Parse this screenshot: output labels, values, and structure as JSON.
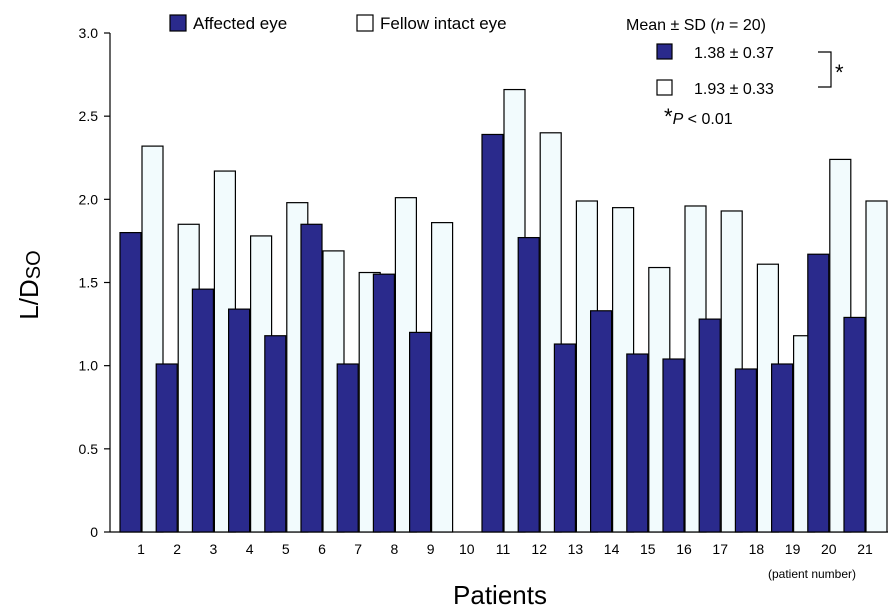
{
  "chart_data": {
    "type": "bar",
    "xlabel": "Patients",
    "xlabel_note": "(patient number)",
    "ylabel_main": "L/D",
    "ylabel_sub": "SO",
    "ylim": [
      0,
      3.0
    ],
    "yticks": [
      "0",
      "0.5",
      "1.0",
      "1.5",
      "2.0",
      "2.5",
      "3.0"
    ],
    "ytick_values": [
      0,
      0.5,
      1.0,
      1.5,
      2.0,
      2.5,
      3.0
    ],
    "categories": [
      "1",
      "2",
      "3",
      "4",
      "5",
      "6",
      "7",
      "8",
      "9",
      "10",
      "11",
      "12",
      "13",
      "14",
      "15",
      "16",
      "17",
      "18",
      "19",
      "20",
      "21"
    ],
    "series": [
      {
        "name": "Affected eye",
        "color": "#2a2a8c",
        "values": [
          1.8,
          1.01,
          1.46,
          1.34,
          1.18,
          1.85,
          1.01,
          1.55,
          1.2,
          null,
          2.39,
          1.77,
          1.13,
          1.33,
          1.07,
          1.04,
          1.28,
          0.98,
          1.01,
          1.67,
          1.29
        ]
      },
      {
        "name": "Fellow intact eye",
        "color": "#f2fbfd",
        "values": [
          2.32,
          1.85,
          2.17,
          1.78,
          1.98,
          1.69,
          1.56,
          2.01,
          1.86,
          null,
          2.66,
          2.4,
          1.99,
          1.95,
          1.59,
          1.96,
          1.93,
          1.61,
          1.18,
          2.24,
          1.99
        ]
      }
    ],
    "stats": {
      "header_prefix": "Mean ± SD (",
      "header_n": "n",
      "header_suffix": " = 20)",
      "affected": "1.38 ± 0.37",
      "fellow": "1.93 ± 0.33",
      "bracket_mark": "*",
      "p_star": "*",
      "p_label": "P",
      "p_value": " < 0.01"
    },
    "grid": false,
    "legend": "top"
  }
}
